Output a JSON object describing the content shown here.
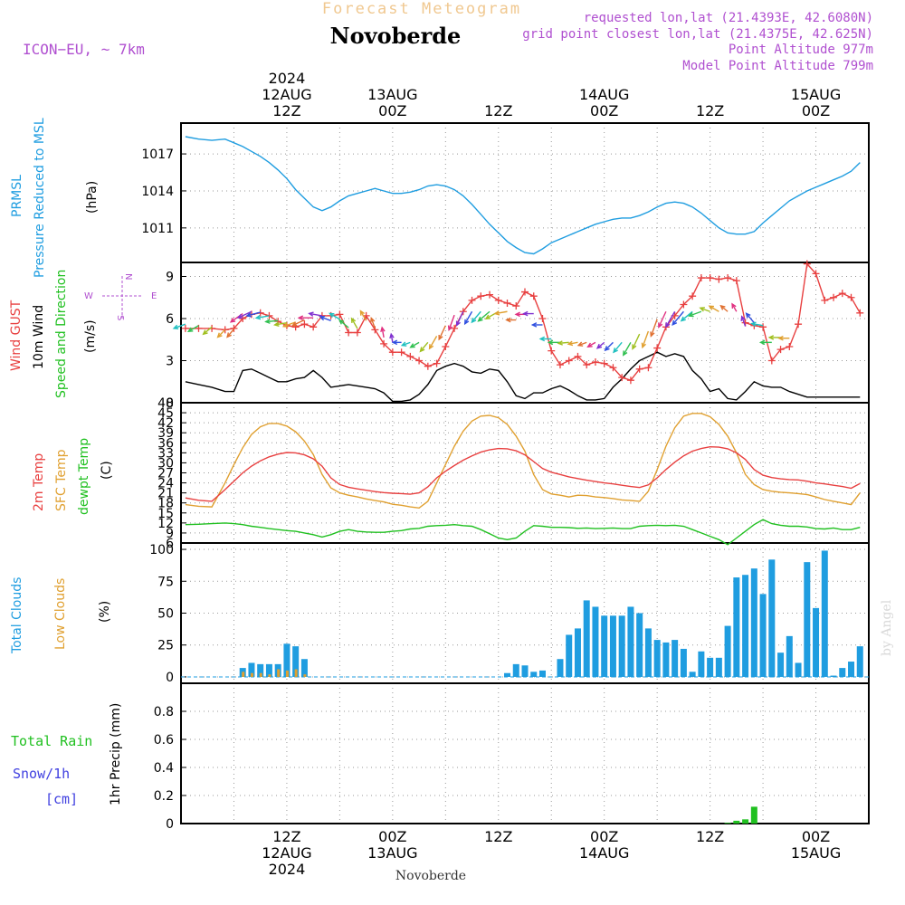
{
  "header": {
    "banner": "Forecast Meteogram",
    "location": "Novoberde",
    "model": "ICON−EU, ~ 7km",
    "requested": "requested lon,lat (21.4393E, 42.6080N)",
    "gridpoint": "grid point closest lon,lat (21.4375E, 42.625N)",
    "point_alt": "Point Altitude 977m",
    "model_alt": "Model Point Altitude 799m",
    "footer_location": "Novoberde",
    "credit": "by Angel"
  },
  "time_axis": {
    "top_labels": [
      {
        "hour": 12,
        "l1": "12AUG",
        "l2": "12Z",
        "l0": "2024"
      },
      {
        "hour": 24,
        "l1": "13AUG",
        "l2": "00Z"
      },
      {
        "hour": 36,
        "l1": "",
        "l2": "12Z"
      },
      {
        "hour": 48,
        "l1": "14AUG",
        "l2": "00Z"
      },
      {
        "hour": 60,
        "l1": "",
        "l2": "12Z"
      },
      {
        "hour": 72,
        "l1": "15AUG",
        "l2": "00Z"
      }
    ],
    "bottom_labels": [
      {
        "hour": 12,
        "l1": "12Z",
        "l2": "12AUG",
        "l3": "2024"
      },
      {
        "hour": 24,
        "l1": "00Z",
        "l2": "13AUG"
      },
      {
        "hour": 36,
        "l1": "12Z",
        "l2": ""
      },
      {
        "hour": 48,
        "l1": "00Z",
        "l2": "14AUG"
      },
      {
        "hour": 60,
        "l1": "12Z",
        "l2": ""
      },
      {
        "hour": 72,
        "l1": "00Z",
        "l2": "15AUG"
      }
    ],
    "start_hour": 0.5,
    "end_hour": 77
  },
  "panels": {
    "pressure": {
      "label1": "PRMSL",
      "label2": "Pressure Reduced to MSL",
      "unit": "(hPa)",
      "ticks": [
        "1011",
        "1014",
        "1017"
      ]
    },
    "wind": {
      "label_gust": "Wind GUST",
      "label_wind": "10m Wind",
      "label_dir": "Speed and Direction",
      "unit": "(m/s)",
      "ticks": [
        "0",
        "3",
        "6",
        "9"
      ],
      "compass": {
        "n": "N",
        "s": "S",
        "e": "E",
        "w": "W"
      }
    },
    "temp": {
      "label_2m": "2m Temp",
      "label_sfc": "SFC Temp",
      "label_dew": "dewpt Temp",
      "unit": "(C)",
      "ticks": [
        "6",
        "9",
        "12",
        "15",
        "18",
        "21",
        "24",
        "27",
        "30",
        "33",
        "36",
        "39",
        "42",
        "45",
        "48"
      ]
    },
    "clouds": {
      "label_total": "Total Clouds",
      "label_low": "Low Clouds",
      "unit": "(%)",
      "ticks": [
        "0",
        "25",
        "50",
        "75",
        "100"
      ]
    },
    "precip": {
      "label_rain": "Total  Rain",
      "label_snow": "Snow/1h",
      "label_snow_unit": "[cm]",
      "unit": "1hr Precip (mm)",
      "ticks": [
        "0",
        "0.2",
        "0.4",
        "0.6",
        "0.8"
      ]
    }
  },
  "colors": {
    "pressure": "#1f9de0",
    "gust": "#e84040",
    "wind": "#000000",
    "temp2m": "#e84040",
    "sfc": "#e0a030",
    "dew": "#20c020",
    "total_clouds": "#1f9de0",
    "low_clouds": "#e0a030",
    "rain": "#20c020",
    "snow": "#4040e0",
    "purple": "#b050d0",
    "banner": "#f0c890"
  },
  "chart_data": [
    {
      "type": "line",
      "title": "PRMSL Pressure Reduced to MSL",
      "ylabel": "hPa",
      "ylim": [
        1008.2,
        1019.5
      ],
      "x": [
        0.5,
        2,
        3.5,
        5,
        6,
        7,
        8,
        9,
        10,
        11,
        12,
        13,
        14,
        15,
        16,
        17,
        18,
        19,
        20,
        21,
        22,
        23,
        24,
        25,
        26,
        27,
        28,
        29,
        30,
        31,
        32,
        33,
        34,
        35,
        36,
        37,
        38,
        39,
        40,
        41,
        42,
        43,
        44,
        45,
        46,
        47,
        48,
        49,
        50,
        51,
        52,
        53,
        54,
        55,
        56,
        57,
        58,
        59,
        60,
        61,
        62,
        63,
        64,
        65,
        66,
        67,
        68,
        69,
        70,
        71,
        72,
        73,
        74,
        75,
        76,
        77
      ],
      "series": [
        {
          "name": "PRMSL",
          "values": [
            1018.4,
            1018.2,
            1018.1,
            1018.2,
            1017.9,
            1017.6,
            1017.2,
            1016.8,
            1016.3,
            1015.7,
            1015.0,
            1014.1,
            1013.4,
            1012.7,
            1012.4,
            1012.7,
            1013.2,
            1013.6,
            1013.8,
            1014.0,
            1014.2,
            1014.0,
            1013.8,
            1013.8,
            1013.9,
            1014.1,
            1014.4,
            1014.5,
            1014.4,
            1014.1,
            1013.6,
            1012.9,
            1012.1,
            1011.3,
            1010.6,
            1009.9,
            1009.4,
            1009.0,
            1008.9,
            1009.3,
            1009.8,
            1010.1,
            1010.4,
            1010.7,
            1011.0,
            1011.3,
            1011.5,
            1011.7,
            1011.8,
            1011.8,
            1012.0,
            1012.3,
            1012.7,
            1013.0,
            1013.1,
            1013.0,
            1012.7,
            1012.2,
            1011.6,
            1011.0,
            1010.6,
            1010.5,
            1010.5,
            1010.7,
            1011.4,
            1012.0,
            1012.6,
            1013.2,
            1013.6,
            1014.0,
            1014.3,
            1014.6,
            1014.9,
            1015.2,
            1015.6,
            1016.3
          ]
        }
      ]
    },
    {
      "type": "line",
      "title": "Wind GUST / 10m Wind Speed and Direction",
      "ylabel": "m/s",
      "ylim": [
        0,
        10
      ],
      "x": [
        0.5,
        2,
        3.5,
        5,
        6,
        7,
        8,
        9,
        10,
        11,
        12,
        13,
        14,
        15,
        16,
        17,
        18,
        19,
        20,
        21,
        22,
        23,
        24,
        25,
        26,
        27,
        28,
        29,
        30,
        31,
        32,
        33,
        34,
        35,
        36,
        37,
        38,
        39,
        40,
        41,
        42,
        43,
        44,
        45,
        46,
        47,
        48,
        49,
        50,
        51,
        52,
        53,
        54,
        55,
        56,
        57,
        58,
        59,
        60,
        61,
        62,
        63,
        64,
        65,
        66,
        67,
        68,
        69,
        70,
        71,
        72,
        73,
        74,
        75,
        76,
        77
      ],
      "series": [
        {
          "name": "Wind GUST",
          "values": [
            5.3,
            5.3,
            5.3,
            5.2,
            5.3,
            6.0,
            6.3,
            6.4,
            6.2,
            5.8,
            5.5,
            5.4,
            5.6,
            5.4,
            6.2,
            6.2,
            6.3,
            5.0,
            5.0,
            6.2,
            5.2,
            4.2,
            3.6,
            3.6,
            3.3,
            3.0,
            2.6,
            2.8,
            4.0,
            5.3,
            6.5,
            7.3,
            7.6,
            7.7,
            7.3,
            7.1,
            6.9,
            7.9,
            7.6,
            6.0,
            3.7,
            2.7,
            3.0,
            3.3,
            2.7,
            2.9,
            2.8,
            2.5,
            1.8,
            1.6,
            2.4,
            2.5,
            3.9,
            5.4,
            6.2,
            7.0,
            7.6,
            8.9,
            8.9,
            8.8,
            8.9,
            8.7,
            5.7,
            5.5,
            5.4,
            3.0,
            3.8,
            4.0,
            5.6,
            9.9,
            9.2,
            7.3,
            7.5,
            7.8,
            7.5,
            6.4
          ]
        },
        {
          "name": "10m Wind",
          "values": [
            1.5,
            1.3,
            1.1,
            0.8,
            0.8,
            2.3,
            2.4,
            2.1,
            1.8,
            1.5,
            1.5,
            1.7,
            1.8,
            2.3,
            1.8,
            1.1,
            1.2,
            1.3,
            1.2,
            1.1,
            1.0,
            0.7,
            0.1,
            0.1,
            0.2,
            0.6,
            1.3,
            2.3,
            2.6,
            2.8,
            2.6,
            2.2,
            2.1,
            2.4,
            2.3,
            1.5,
            0.5,
            0.3,
            0.7,
            0.7,
            1.0,
            1.2,
            0.9,
            0.5,
            0.2,
            0.2,
            0.3,
            1.1,
            1.7,
            2.4,
            3.0,
            3.3,
            3.6,
            3.3,
            3.5,
            3.3,
            2.3,
            1.7,
            0.8,
            1.0,
            0.3,
            0.2,
            0.8,
            1.5,
            1.2,
            1.1,
            1.1,
            0.8,
            0.6,
            0.4,
            0.4,
            0.4,
            0.4,
            0.4,
            0.4,
            0.4
          ]
        }
      ]
    },
    {
      "type": "line",
      "title": "2m Temp / SFC Temp / dewpt Temp",
      "ylabel": "C",
      "ylim": [
        6,
        48
      ],
      "x": [
        0.5,
        2,
        3.5,
        5,
        6,
        7,
        8,
        9,
        10,
        11,
        12,
        13,
        14,
        15,
        16,
        17,
        18,
        19,
        20,
        21,
        22,
        23,
        24,
        25,
        26,
        27,
        28,
        29,
        30,
        31,
        32,
        33,
        34,
        35,
        36,
        37,
        38,
        39,
        40,
        41,
        42,
        43,
        44,
        45,
        46,
        47,
        48,
        49,
        50,
        51,
        52,
        53,
        54,
        55,
        56,
        57,
        58,
        59,
        60,
        61,
        62,
        63,
        64,
        65,
        66,
        67,
        68,
        69,
        70,
        71,
        72,
        73,
        74,
        75,
        76,
        77
      ],
      "series": [
        {
          "name": "2m Temp",
          "values": [
            19.5,
            18.8,
            18.5,
            22.0,
            24.5,
            27.0,
            29.0,
            30.6,
            31.8,
            32.6,
            33.1,
            33.0,
            32.4,
            31.2,
            29.0,
            25.5,
            23.5,
            22.7,
            22.2,
            21.8,
            21.4,
            21.1,
            20.9,
            20.8,
            20.6,
            21.0,
            22.8,
            25.5,
            27.5,
            29.2,
            30.8,
            32.1,
            33.2,
            33.9,
            34.3,
            34.2,
            33.6,
            32.4,
            30.4,
            28.3,
            27.2,
            26.5,
            25.8,
            25.3,
            24.8,
            24.4,
            24.0,
            23.7,
            23.3,
            22.9,
            22.6,
            23.4,
            25.5,
            28.0,
            30.2,
            32.1,
            33.5,
            34.3,
            34.8,
            34.7,
            34.2,
            33.0,
            31.0,
            28.0,
            26.3,
            25.6,
            25.2,
            25.0,
            24.9,
            24.5,
            24.0,
            23.7,
            23.3,
            22.9,
            22.4,
            23.8
          ]
        },
        {
          "name": "SFC Temp",
          "values": [
            17.5,
            17.0,
            16.8,
            24.0,
            29.5,
            34.5,
            38.5,
            40.8,
            41.8,
            41.8,
            41.0,
            39.3,
            36.5,
            32.5,
            26.5,
            22.5,
            21.0,
            20.3,
            19.8,
            19.2,
            18.7,
            18.3,
            17.6,
            17.3,
            16.8,
            16.5,
            18.5,
            24.0,
            29.5,
            35.0,
            39.5,
            42.5,
            44.0,
            44.2,
            43.5,
            41.5,
            38.0,
            33.5,
            26.5,
            22.0,
            20.7,
            20.3,
            19.8,
            20.3,
            20.2,
            19.8,
            19.6,
            19.3,
            18.9,
            18.7,
            18.5,
            21.5,
            28.0,
            35.0,
            40.5,
            44.0,
            44.8,
            44.8,
            43.8,
            41.5,
            38.0,
            33.0,
            26.5,
            23.5,
            22.0,
            21.5,
            21.2,
            21.0,
            20.8,
            20.5,
            19.8,
            19.0,
            18.5,
            18.0,
            17.5,
            21.0
          ]
        },
        {
          "name": "dewpt Temp",
          "values": [
            11.5,
            11.6,
            11.8,
            12.0,
            11.8,
            11.5,
            11.0,
            10.7,
            10.3,
            10.0,
            9.7,
            9.5,
            9.0,
            8.5,
            7.8,
            8.5,
            9.5,
            10.0,
            9.5,
            9.3,
            9.2,
            9.2,
            9.5,
            9.7,
            10.2,
            10.4,
            11.0,
            11.2,
            11.3,
            11.5,
            11.2,
            11.0,
            10.0,
            8.8,
            7.5,
            7.0,
            7.5,
            9.5,
            11.2,
            11.0,
            10.7,
            10.7,
            10.6,
            10.4,
            10.5,
            10.3,
            10.4,
            10.5,
            10.3,
            10.3,
            11.0,
            11.2,
            11.3,
            11.2,
            11.3,
            11.0,
            10.0,
            9.0,
            8.0,
            7.0,
            5.5,
            7.5,
            9.5,
            11.5,
            13.0,
            11.8,
            11.3,
            11.0,
            11.0,
            10.8,
            10.3,
            10.2,
            10.5,
            10.0,
            10.0,
            10.7
          ]
        }
      ]
    },
    {
      "type": "bar",
      "title": "Total Clouds / Low Clouds",
      "ylabel": "%",
      "ylim": [
        -5,
        105
      ],
      "x": [
        7,
        8,
        9,
        10,
        11,
        12,
        13,
        14,
        15,
        16,
        17,
        18,
        19,
        20,
        21,
        22,
        23,
        24,
        25,
        26,
        27,
        28,
        29,
        30,
        31,
        32,
        33,
        34,
        35,
        36,
        37,
        38,
        39,
        40,
        41,
        42,
        43,
        44,
        45,
        46,
        47,
        48,
        49,
        50,
        51,
        52,
        53,
        54,
        55,
        56,
        57,
        58,
        59,
        60,
        61,
        62,
        63,
        64,
        65,
        66,
        67,
        68,
        69,
        70,
        71,
        72,
        73,
        74,
        75,
        76,
        77
      ],
      "series": [
        {
          "name": "Total Clouds",
          "values": [
            7,
            11,
            10,
            10,
            10,
            26,
            24,
            14,
            0,
            0,
            0,
            0,
            0,
            0,
            0,
            0,
            0,
            0,
            0,
            0,
            0,
            0,
            0,
            0,
            0,
            0,
            0,
            0,
            0,
            0,
            3,
            10,
            9,
            4,
            5,
            0,
            14,
            33,
            38,
            60,
            55,
            48,
            48,
            48,
            55,
            50,
            38,
            29,
            27,
            29,
            22,
            4,
            20,
            15,
            15,
            40,
            78,
            80,
            85,
            65,
            92,
            19,
            32,
            11,
            90,
            54,
            99,
            1,
            7,
            12,
            24
          ]
        },
        {
          "name": "Low Clouds",
          "values": [
            4,
            3,
            3,
            2,
            6,
            5,
            6,
            2,
            0,
            0,
            0,
            0,
            0,
            0,
            0,
            0,
            0,
            0,
            0,
            0,
            0,
            0,
            0,
            0,
            0,
            0,
            0,
            0,
            0,
            0,
            0,
            0,
            0,
            0,
            0,
            0,
            0,
            0,
            0,
            0,
            0,
            0,
            0,
            0,
            0,
            0,
            0,
            0,
            0,
            0,
            0,
            0,
            0,
            0,
            0,
            0,
            0,
            0,
            0,
            0,
            0,
            0,
            0,
            0,
            0,
            0,
            0,
            0,
            0,
            0,
            0
          ]
        }
      ]
    },
    {
      "type": "bar",
      "title": "1hr Precip",
      "ylabel": "mm",
      "ylim": [
        0,
        1.0
      ],
      "x": [
        62,
        63,
        64,
        65
      ],
      "series": [
        {
          "name": "Total Rain",
          "values": [
            0.005,
            0.02,
            0.03,
            0.12
          ]
        }
      ]
    }
  ]
}
